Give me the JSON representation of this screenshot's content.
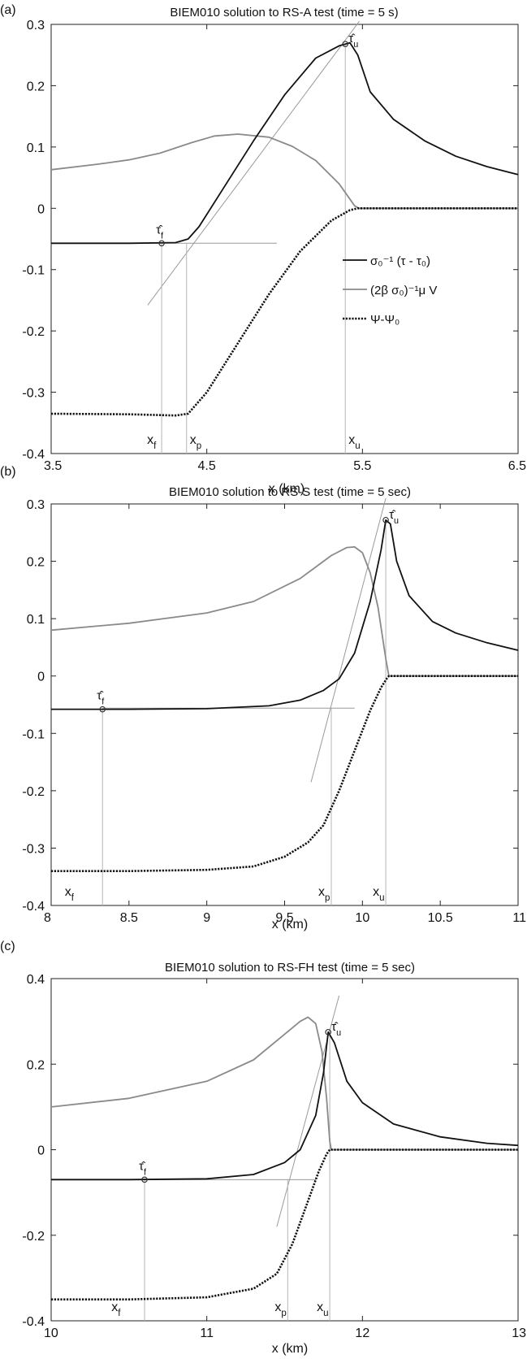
{
  "chart_data": [
    {
      "panel": "(a)",
      "type": "line",
      "title": "BIEM010 solution to RS-A test (time = 5 s)",
      "xlabel": "x (km)",
      "ylabel": "",
      "xlim": [
        3.5,
        6.5
      ],
      "ylim": [
        -0.4,
        0.3
      ],
      "xticks": [
        3.5,
        4.5,
        5.5,
        6.5
      ],
      "xtick_labels": [
        "3.5",
        "4.5",
        "5.5",
        "6.5"
      ],
      "yticks": [
        -0.4,
        -0.3,
        -0.2,
        -0.1,
        0,
        0.1,
        0.2,
        0.3
      ],
      "ytick_labels": [
        "-0.4",
        "-0.3",
        "-0.2",
        "-0.1",
        "0",
        "0.1",
        "0.2",
        "0.3"
      ],
      "grid": false,
      "legend": {
        "placement": "right-middle",
        "entries": [
          {
            "series": "stress",
            "label": "σ₀⁻¹ (τ - τ₀)",
            "style": "solid-black"
          },
          {
            "series": "velocity",
            "label": "(2β σ₀)⁻¹μ V",
            "style": "solid-gray"
          },
          {
            "series": "state",
            "label": "Ψ-Ψ₀",
            "style": "dotted-black"
          }
        ]
      },
      "series": [
        {
          "key": "velocity",
          "x": [
            3.5,
            3.8,
            4.0,
            4.2,
            4.4,
            4.55,
            4.7,
            4.9,
            5.05,
            5.2,
            5.35,
            5.45,
            5.48,
            6.5
          ],
          "y": [
            0.063,
            0.072,
            0.079,
            0.09,
            0.107,
            0.118,
            0.121,
            0.116,
            0.101,
            0.078,
            0.04,
            0.004,
            0.0,
            0.0
          ]
        },
        {
          "key": "stress",
          "x": [
            3.5,
            4.0,
            4.3,
            4.38,
            4.45,
            4.6,
            4.8,
            5.0,
            5.2,
            5.35,
            5.42,
            5.47,
            5.55,
            5.7,
            5.9,
            6.1,
            6.3,
            6.5
          ],
          "y": [
            -0.057,
            -0.057,
            -0.056,
            -0.05,
            -0.03,
            0.03,
            0.11,
            0.185,
            0.245,
            0.265,
            0.27,
            0.25,
            0.19,
            0.145,
            0.11,
            0.085,
            0.068,
            0.055
          ]
        },
        {
          "key": "state",
          "x": [
            3.5,
            4.0,
            4.3,
            4.38,
            4.5,
            4.7,
            4.9,
            5.1,
            5.3,
            5.42,
            5.47,
            6.5
          ],
          "y": [
            -0.335,
            -0.336,
            -0.338,
            -0.335,
            -0.3,
            -0.22,
            -0.14,
            -0.07,
            -0.02,
            -0.003,
            0.0,
            0.0
          ]
        }
      ],
      "guide_lines": {
        "horizontal": {
          "y": -0.057,
          "x": [
            4.1,
            4.95
          ]
        },
        "tangent": {
          "x": [
            4.12,
            5.48
          ],
          "y": [
            -0.158,
            0.305
          ]
        },
        "vertical_x": [
          4.21,
          4.37,
          5.39
        ]
      },
      "markers": [
        {
          "key": "tau_f",
          "x": 4.21,
          "y": -0.057,
          "label": "τ̂f"
        },
        {
          "key": "tau_u",
          "x": 5.39,
          "y": 0.268,
          "label": "τ̂u"
        }
      ],
      "point_labels": [
        {
          "text": "xf",
          "x": 4.21
        },
        {
          "text": "xp",
          "x": 4.37
        },
        {
          "text": "xu",
          "x": 5.39
        }
      ]
    },
    {
      "panel": "(b)",
      "type": "line",
      "title": "BIEM010 solution to RS-S test (time = 5 sec)",
      "xlabel": "x (km)",
      "ylabel": "",
      "xlim": [
        8,
        11
      ],
      "ylim": [
        -0.4,
        0.3
      ],
      "xticks": [
        8,
        8.5,
        9,
        9.5,
        10,
        10.5,
        11
      ],
      "xtick_labels": [
        "8",
        "8.5",
        "9",
        "9.5",
        "10",
        "10.5",
        "11"
      ],
      "yticks": [
        -0.4,
        -0.3,
        -0.2,
        -0.1,
        0,
        0.1,
        0.2,
        0.3
      ],
      "ytick_labels": [
        "-0.4",
        "-0.3",
        "-0.2",
        "-0.1",
        "0",
        "0.1",
        "0.2",
        "0.3"
      ],
      "grid": false,
      "series": [
        {
          "key": "velocity",
          "x": [
            8.0,
            8.5,
            9.0,
            9.3,
            9.6,
            9.8,
            9.9,
            9.95,
            10.0,
            10.05,
            10.1,
            10.15,
            10.17,
            11.0
          ],
          "y": [
            0.08,
            0.092,
            0.11,
            0.13,
            0.17,
            0.21,
            0.224,
            0.225,
            0.215,
            0.18,
            0.12,
            0.03,
            0.0,
            0.0
          ]
        },
        {
          "key": "stress",
          "x": [
            8.0,
            8.5,
            9.0,
            9.4,
            9.6,
            9.75,
            9.85,
            9.95,
            10.05,
            10.12,
            10.15,
            10.18,
            10.22,
            10.3,
            10.45,
            10.6,
            10.8,
            11.0
          ],
          "y": [
            -0.058,
            -0.058,
            -0.057,
            -0.052,
            -0.042,
            -0.025,
            -0.005,
            0.04,
            0.13,
            0.22,
            0.272,
            0.265,
            0.2,
            0.14,
            0.095,
            0.075,
            0.058,
            0.045
          ]
        },
        {
          "key": "state",
          "x": [
            8.0,
            8.5,
            9.0,
            9.3,
            9.5,
            9.65,
            9.75,
            9.85,
            9.95,
            10.05,
            10.12,
            10.16,
            10.17,
            11.0
          ],
          "y": [
            -0.34,
            -0.34,
            -0.338,
            -0.332,
            -0.315,
            -0.29,
            -0.26,
            -0.2,
            -0.13,
            -0.06,
            -0.02,
            -0.003,
            0.0,
            0.0
          ]
        }
      ],
      "guide_lines": {
        "horizontal": {
          "y": -0.056,
          "x": [
            8.33,
            9.95
          ]
        },
        "tangent": {
          "x": [
            9.67,
            10.15
          ],
          "y": [
            -0.185,
            0.31
          ]
        },
        "vertical_x": [
          8.33,
          9.8,
          10.15
        ]
      },
      "markers": [
        {
          "key": "tau_f",
          "x": 8.33,
          "y": -0.058,
          "label": "τ̂f"
        },
        {
          "key": "tau_u",
          "x": 10.15,
          "y": 0.272,
          "label": "τ̂u"
        }
      ],
      "point_labels": [
        {
          "text": "xf",
          "x": 8.15
        },
        {
          "text": "xp",
          "x": 9.8
        },
        {
          "text": "xu",
          "x": 10.15
        }
      ]
    },
    {
      "panel": "(c)",
      "type": "line",
      "title": "BIEM010 solution to RS-FH test (time = 5 sec)",
      "xlabel": "x (km)",
      "ylabel": "",
      "xlim": [
        10,
        13
      ],
      "ylim": [
        -0.4,
        0.4
      ],
      "xticks": [
        10,
        11,
        12,
        13
      ],
      "xtick_labels": [
        "10",
        "11",
        "12",
        "13"
      ],
      "yticks": [
        -0.4,
        -0.2,
        0,
        0.2,
        0.4
      ],
      "ytick_labels": [
        "-0.4",
        "-0.2",
        "0",
        "0.2",
        "0.4"
      ],
      "grid": false,
      "series": [
        {
          "key": "velocity",
          "x": [
            10.0,
            10.5,
            11.0,
            11.3,
            11.5,
            11.6,
            11.65,
            11.7,
            11.74,
            11.77,
            11.79,
            11.8,
            13.0
          ],
          "y": [
            0.1,
            0.12,
            0.16,
            0.21,
            0.27,
            0.3,
            0.31,
            0.295,
            0.23,
            0.12,
            0.02,
            0.0,
            0.0
          ]
        },
        {
          "key": "stress",
          "x": [
            10.0,
            10.5,
            11.0,
            11.3,
            11.5,
            11.6,
            11.7,
            11.75,
            11.78,
            11.82,
            11.9,
            12.0,
            12.2,
            12.5,
            12.8,
            13.0
          ],
          "y": [
            -0.07,
            -0.07,
            -0.068,
            -0.058,
            -0.03,
            0.0,
            0.08,
            0.18,
            0.275,
            0.25,
            0.16,
            0.11,
            0.06,
            0.03,
            0.015,
            0.01
          ]
        },
        {
          "key": "state",
          "x": [
            10.0,
            10.5,
            11.0,
            11.3,
            11.45,
            11.55,
            11.65,
            11.72,
            11.77,
            11.79,
            13.0
          ],
          "y": [
            -0.35,
            -0.35,
            -0.345,
            -0.325,
            -0.29,
            -0.22,
            -0.12,
            -0.05,
            -0.01,
            0.0,
            0.0
          ]
        }
      ],
      "guide_lines": {
        "horizontal": {
          "y": -0.07,
          "x": [
            10.0,
            11.7
          ]
        },
        "tangent": {
          "x": [
            11.45,
            11.85
          ],
          "y": [
            -0.18,
            0.36
          ]
        },
        "vertical_x": [
          10.6,
          11.52,
          11.79
        ]
      },
      "markers": [
        {
          "key": "tau_f",
          "x": 10.6,
          "y": -0.07,
          "label": "τ̂f"
        },
        {
          "key": "tau_u",
          "x": 11.78,
          "y": 0.275,
          "label": "τ̂u"
        }
      ],
      "point_labels": [
        {
          "text": "xf",
          "x": 10.45
        },
        {
          "text": "xp",
          "x": 11.52
        },
        {
          "text": "xu",
          "x": 11.79
        }
      ]
    }
  ]
}
